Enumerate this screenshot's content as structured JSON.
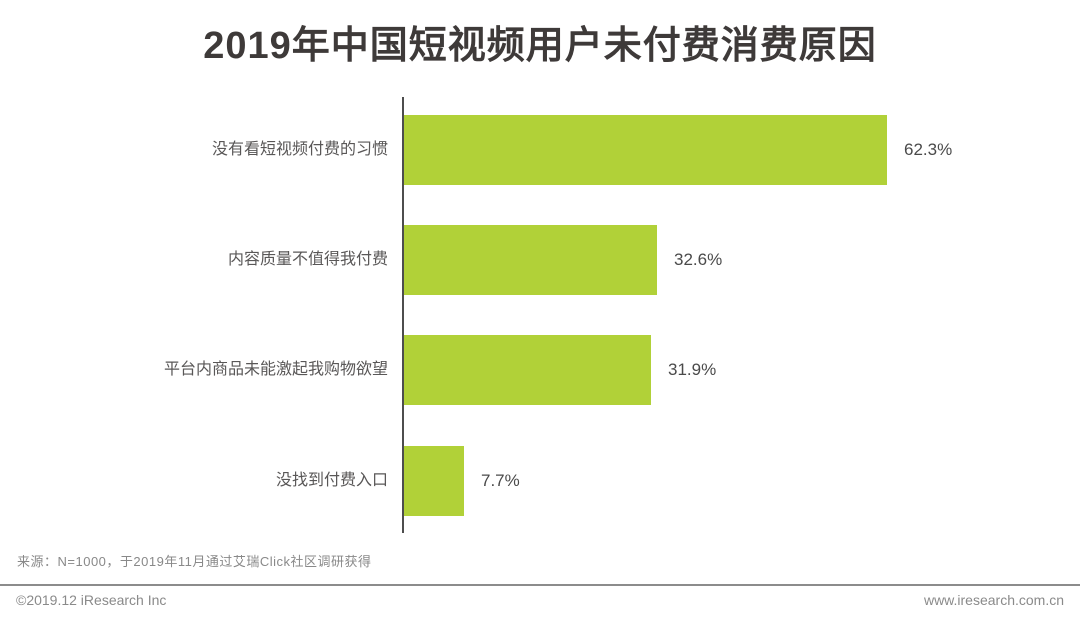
{
  "title": "2019年中国短视频用户未付费消费原因",
  "chart_data": {
    "type": "bar",
    "orientation": "horizontal",
    "title": "2019年中国短视频用户未付费消费原因",
    "categories": [
      "没有看短视频付费的习惯",
      "内容质量不值得我付费",
      "平台内商品未能激起我购物欲望",
      "没找到付费入口"
    ],
    "values": [
      62.3,
      32.6,
      31.9,
      7.7
    ],
    "value_labels": [
      "62.3%",
      "32.6%",
      "31.9%",
      "7.7%"
    ],
    "xlabel": "",
    "ylabel": "",
    "xlim": [
      0,
      70
    ],
    "grid": false,
    "legend": false,
    "bar_color": "#b1d138",
    "axis_color": "#4d4d4d"
  },
  "footer": {
    "source": "来源：N=1000，于2019年11月通过艾瑞Click社区调研获得",
    "copyright": "©2019.12 iResearch Inc",
    "website": "www.iresearch.com.cn"
  }
}
